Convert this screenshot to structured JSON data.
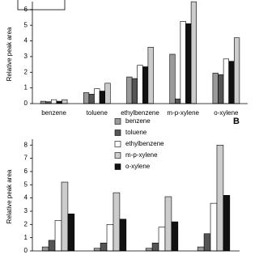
{
  "chart_data": [
    {
      "type": "bar",
      "ylabel": "Relative peak area",
      "categories": [
        "benzene",
        "toluene",
        "ethylbenzene",
        "m-p-xylene",
        "o-xylene"
      ],
      "series": [
        {
          "color": "#9a9a9a",
          "values": [
            0.15,
            0.7,
            1.7,
            3.15,
            1.95
          ]
        },
        {
          "color": "#555555",
          "values": [
            0.12,
            0.6,
            1.6,
            0.3,
            1.85
          ]
        },
        {
          "color": "#ffffff",
          "values": [
            0.25,
            0.95,
            2.45,
            5.25,
            2.85
          ]
        },
        {
          "color": "#111111",
          "values": [
            0.15,
            0.8,
            2.35,
            5.1,
            2.7
          ]
        },
        {
          "color": "#cccccc",
          "values": [
            0.25,
            1.3,
            3.6,
            6.5,
            4.2
          ]
        }
      ],
      "ylim": [
        0,
        6.3
      ],
      "yticks": [
        0,
        1,
        2,
        3,
        4,
        5,
        6
      ]
    },
    {
      "type": "bar",
      "title": "B",
      "ylabel": "Relative peak area",
      "categories": [
        null,
        null,
        null,
        null
      ],
      "series": [
        {
          "name": "benzene",
          "color": "#9a9a9a",
          "values": [
            0.3,
            0.2,
            0.2,
            0.3
          ]
        },
        {
          "name": "toluene",
          "color": "#555555",
          "values": [
            0.8,
            0.6,
            0.6,
            1.3
          ]
        },
        {
          "name": "ethylbenzene",
          "color": "#ffffff",
          "values": [
            2.3,
            2.0,
            1.8,
            3.6
          ]
        },
        {
          "name": "m-p-xylene",
          "color": "#cccccc",
          "values": [
            5.2,
            4.4,
            4.1,
            8.0
          ]
        },
        {
          "name": "o-xylene",
          "color": "#111111",
          "values": [
            2.8,
            2.4,
            2.2,
            4.2
          ]
        }
      ],
      "ylim": [
        0,
        8.2
      ],
      "yticks": [
        0,
        1,
        2,
        3,
        4,
        5,
        6,
        7,
        8
      ]
    }
  ]
}
